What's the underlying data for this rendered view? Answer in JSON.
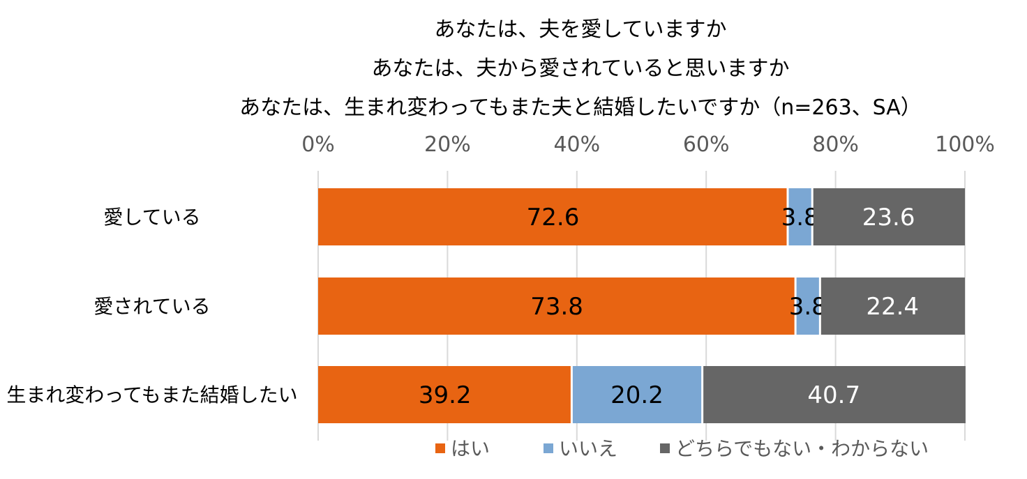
{
  "chart_data": {
    "type": "bar",
    "orientation": "horizontal",
    "stacked": true,
    "normalized": true,
    "title": [
      "あなたは、夫を愛していますか",
      "あなたは、夫から愛されていると思いますか",
      "あなたは、生まれ変わってもまた夫と結婚したいですか（n=263、SA）"
    ],
    "categories": [
      "愛している",
      "愛されている",
      "生まれ変わってもまた結婚したい"
    ],
    "series": [
      {
        "name": "はい",
        "color": "#E86412",
        "label_color": "#000000",
        "values": [
          72.6,
          73.8,
          39.2
        ]
      },
      {
        "name": "いいえ",
        "color": "#7BA7D3",
        "label_color": "#000000",
        "values": [
          3.8,
          3.8,
          20.2
        ]
      },
      {
        "name": "どちらでもない・わからない",
        "color": "#666666",
        "label_color": "#FFFFFF",
        "values": [
          23.6,
          22.4,
          40.7
        ]
      }
    ],
    "xlim": [
      0,
      100
    ],
    "xticks": [
      "0%",
      "20%",
      "40%",
      "60%",
      "80%",
      "100%"
    ],
    "grid": true,
    "legend_position": "bottom"
  }
}
